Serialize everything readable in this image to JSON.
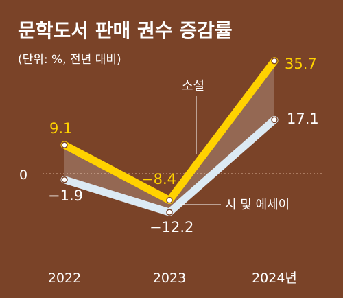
{
  "chart_data": {
    "type": "line",
    "title": "문학도서 판매 권수 증감률",
    "subtitle": "(단위: %, 전년 대비)",
    "categories": [
      "2022",
      "2023",
      "2024년"
    ],
    "zero_label": "0",
    "ylim": [
      -15,
      40
    ],
    "series": [
      {
        "name": "소설",
        "values": [
          9.1,
          -8.4,
          35.7
        ],
        "labels": [
          "9.1",
          "−8.4",
          "35.7"
        ],
        "color": "#ffd200"
      },
      {
        "name": "시 및 에세이",
        "values": [
          -1.9,
          -12.2,
          17.1
        ],
        "labels": [
          "−1.9",
          "−12.2",
          "17.1"
        ],
        "color": "#dceaf4"
      }
    ]
  }
}
